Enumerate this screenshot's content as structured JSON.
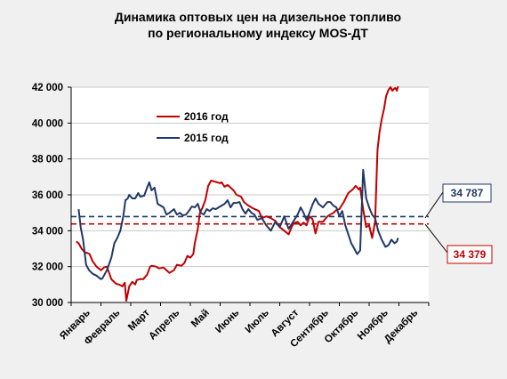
{
  "chart_data": {
    "type": "line",
    "title_line1": "Динамика оптовых цен на дизельное топливо",
    "title_line2": "по региональному индексу MOS-ДТ",
    "ylim": [
      30000,
      42000
    ],
    "y_ticks": [
      30000,
      32000,
      34000,
      36000,
      38000,
      40000,
      42000
    ],
    "y_tick_labels": [
      "30 000",
      "32 000",
      "34 000",
      "36 000",
      "38 000",
      "40 000",
      "42 000"
    ],
    "xlim": [
      0,
      12
    ],
    "months": [
      "Январь",
      "Февраль",
      "Март",
      "Апрель",
      "Май",
      "Июнь",
      "Июль",
      "Август",
      "Сентябрь",
      "Октябрь",
      "Ноябрь",
      "Декабрь"
    ],
    "grid": true,
    "legend_position": "top-right",
    "colors": {
      "2016": "#c00000",
      "2015": "#1f3864"
    },
    "series": [
      {
        "name": "2016 год",
        "key": "2016",
        "color": "#c00000",
        "x": [
          0.17,
          0.25,
          0.35,
          0.45,
          0.55,
          0.62,
          0.72,
          0.85,
          1.0,
          1.1,
          1.2,
          1.35,
          1.5,
          1.6,
          1.72,
          1.8,
          1.85,
          1.95,
          2.05,
          2.15,
          2.2,
          2.3,
          2.42,
          2.55,
          2.65,
          2.7,
          2.85,
          2.95,
          3.1,
          3.2,
          3.3,
          3.45,
          3.55,
          3.7,
          3.8,
          3.9,
          4.0,
          4.1,
          4.15,
          4.25,
          4.32,
          4.4,
          4.5,
          4.6,
          4.7,
          4.8,
          4.9,
          5.0,
          5.05,
          5.15,
          5.25,
          5.35,
          5.45,
          5.55,
          5.7,
          5.8,
          5.95,
          6.1,
          6.3,
          6.4,
          6.55,
          6.7,
          6.85,
          7.0,
          7.15,
          7.3,
          7.45,
          7.6,
          7.7,
          7.8,
          7.9,
          8.0,
          8.1,
          8.2,
          8.3,
          8.45,
          8.6,
          8.7,
          8.8,
          8.9,
          9.0,
          9.15,
          9.3,
          9.45,
          9.55,
          9.65,
          9.7,
          9.8,
          9.9,
          10.0,
          10.1,
          10.2,
          10.28,
          10.35,
          10.42,
          10.5,
          10.57,
          10.65,
          10.72,
          10.78,
          10.83,
          10.88,
          10.93,
          10.97
        ],
        "values": [
          33400,
          33300,
          33000,
          32800,
          32750,
          32700,
          32300,
          32000,
          31800,
          31950,
          32000,
          31300,
          31050,
          31000,
          30900,
          31100,
          30100,
          30900,
          31150,
          31000,
          31250,
          31300,
          31300,
          31550,
          32000,
          32050,
          32000,
          31900,
          31950,
          31800,
          31650,
          31800,
          32100,
          32050,
          32200,
          32600,
          32500,
          32700,
          33300,
          34100,
          35000,
          35250,
          35700,
          36500,
          36800,
          36750,
          36700,
          36650,
          36700,
          36450,
          36550,
          36400,
          36250,
          36000,
          35900,
          35600,
          35400,
          35250,
          35100,
          34700,
          34800,
          34700,
          34550,
          34200,
          34000,
          33800,
          34400,
          34500,
          34300,
          34450,
          34300,
          34800,
          34650,
          33850,
          34500,
          34500,
          34800,
          34900,
          35000,
          35150,
          35200,
          35600,
          36100,
          36300,
          36500,
          36300,
          36400,
          35200,
          34200,
          34300,
          33600,
          34500,
          38500,
          39500,
          40200,
          40800,
          41500,
          41850,
          42000,
          41800,
          41900,
          41950,
          41800,
          42050
        ]
      },
      {
        "name": "2015 год",
        "key": "2015",
        "color": "#1f3864",
        "x": [
          0.25,
          0.32,
          0.4,
          0.5,
          0.6,
          0.72,
          0.85,
          1.0,
          1.05,
          1.2,
          1.35,
          1.45,
          1.55,
          1.65,
          1.75,
          1.82,
          1.9,
          1.95,
          2.05,
          2.15,
          2.25,
          2.32,
          2.45,
          2.55,
          2.62,
          2.7,
          2.8,
          2.9,
          3.0,
          3.1,
          3.2,
          3.3,
          3.45,
          3.55,
          3.65,
          3.75,
          3.85,
          3.95,
          4.05,
          4.15,
          4.25,
          4.35,
          4.45,
          4.55,
          4.65,
          4.75,
          4.85,
          4.95,
          5.05,
          5.15,
          5.25,
          5.35,
          5.45,
          5.55,
          5.65,
          5.75,
          5.85,
          5.95,
          6.05,
          6.15,
          6.25,
          6.4,
          6.55,
          6.7,
          6.85,
          7.0,
          7.15,
          7.3,
          7.45,
          7.6,
          7.7,
          7.8,
          7.9,
          8.0,
          8.1,
          8.2,
          8.3,
          8.45,
          8.6,
          8.7,
          8.8,
          8.9,
          9.0,
          9.1,
          9.2,
          9.3,
          9.4,
          9.5,
          9.6,
          9.7,
          9.8,
          9.9,
          10.0,
          10.1,
          10.2,
          10.3,
          10.42,
          10.55,
          10.65,
          10.75,
          10.85,
          10.93,
          10.97
        ],
        "values": [
          35200,
          34200,
          33500,
          32100,
          31800,
          31600,
          31500,
          31300,
          31350,
          31800,
          32500,
          33300,
          33600,
          34000,
          34800,
          35700,
          35800,
          36000,
          35800,
          35800,
          36100,
          35900,
          35950,
          36400,
          36700,
          36250,
          36400,
          35500,
          35400,
          35300,
          34900,
          35000,
          35200,
          34900,
          35000,
          34850,
          34900,
          35100,
          35350,
          35300,
          35500,
          35000,
          34900,
          35200,
          35100,
          35250,
          35200,
          35300,
          35400,
          35500,
          35700,
          35300,
          35550,
          35550,
          35600,
          35200,
          34950,
          35200,
          35000,
          34900,
          34600,
          34700,
          34300,
          34000,
          34500,
          34200,
          34800,
          34100,
          34500,
          34900,
          35300,
          35000,
          34600,
          35000,
          35450,
          35800,
          35500,
          35300,
          35600,
          35600,
          35400,
          35300,
          34800,
          35100,
          34300,
          33800,
          33300,
          33000,
          32700,
          32900,
          37400,
          35800,
          35300,
          34900,
          34700,
          34000,
          33500,
          33100,
          33200,
          33500,
          33300,
          33400,
          33600
        ]
      }
    ],
    "reference_lines": [
      {
        "key": "2015",
        "value": 34787,
        "label": "34 787",
        "color": "#1f3864"
      },
      {
        "key": "2016",
        "value": 34379,
        "label": "34 379",
        "color": "#c00000"
      }
    ]
  }
}
